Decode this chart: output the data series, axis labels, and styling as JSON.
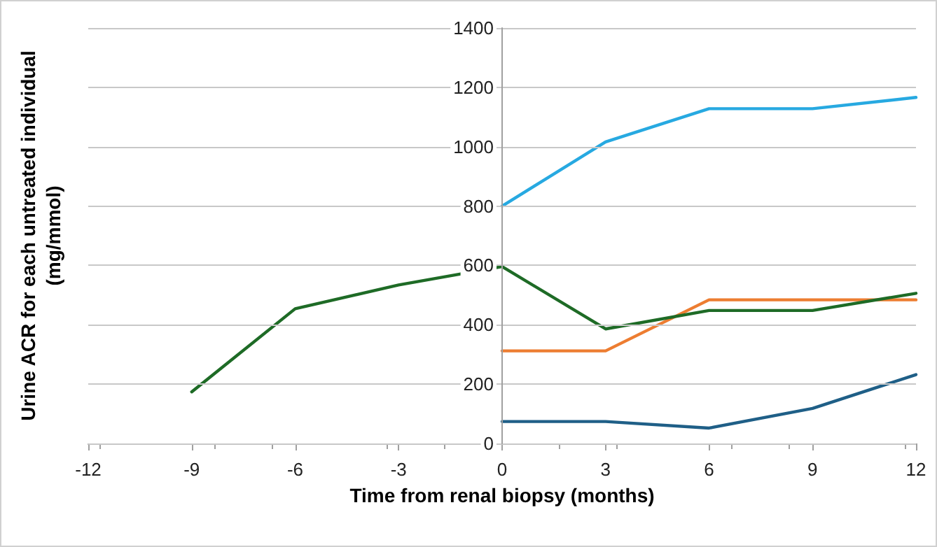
{
  "chart_data": {
    "type": "line",
    "xlabel": "Time from renal biopsy (months)",
    "ylabel": "Urine ACR for each untreated individual\n(mg/mmol)",
    "xlim": [
      -12,
      12
    ],
    "xticks": [
      -12,
      -9,
      -6,
      -3,
      0,
      3,
      6,
      9,
      12
    ],
    "ylim": [
      0,
      1400
    ],
    "yticks": [
      0,
      200,
      400,
      600,
      800,
      1000,
      1200,
      1400
    ],
    "grid": "y",
    "marker": "none",
    "line_style": "solid",
    "series": [
      {
        "color": "#27a9e1",
        "x": [
          0,
          3,
          6,
          9,
          12
        ],
        "values": [
          800,
          1016,
          1128,
          1128,
          1166
        ]
      },
      {
        "color": "#ed7d31",
        "x": [
          0,
          3,
          6,
          9,
          12
        ],
        "values": [
          312,
          312,
          484,
          484,
          484
        ]
      },
      {
        "color": "#1e6b26",
        "x": [
          -9,
          -6,
          -3,
          0,
          3,
          6,
          9,
          12
        ],
        "values": [
          174,
          454,
          534,
          596,
          386,
          448,
          448,
          506
        ]
      },
      {
        "color": "#1f5f87",
        "x": [
          0,
          3,
          6,
          9,
          12
        ],
        "values": [
          74,
          74,
          52,
          118,
          232
        ]
      }
    ]
  }
}
